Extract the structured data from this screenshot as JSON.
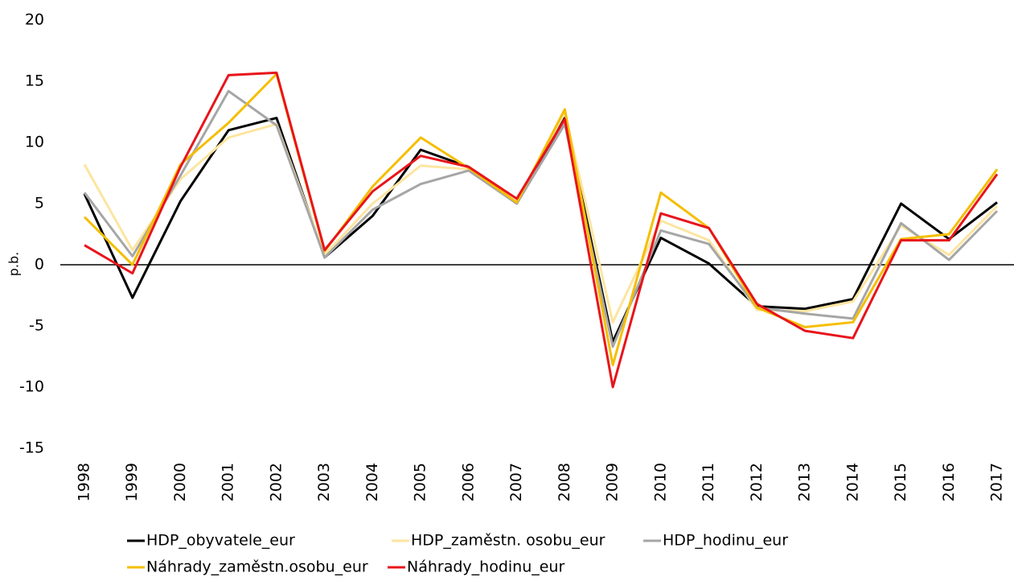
{
  "chart_data": {
    "type": "line",
    "ylabel": "p.b.",
    "categories": [
      "1998",
      "1999",
      "2000",
      "2001",
      "2002",
      "2003",
      "2004",
      "2005",
      "2006",
      "2007",
      "2008",
      "2009",
      "2010",
      "2011",
      "2012",
      "2013",
      "2014",
      "2015",
      "2016",
      "2017"
    ],
    "series": [
      {
        "name": "HDP_obyvatele_eur",
        "color": "#000000",
        "values": [
          5.8,
          -2.7,
          5.2,
          11,
          12,
          0.6,
          4,
          9.4,
          8,
          5,
          12,
          -6.3,
          2.2,
          0.1,
          -3.4,
          -3.6,
          -2.8,
          5,
          2.1,
          5.1
        ]
      },
      {
        "name": "HDP_zaměstn. osobu_eur",
        "color": "#fde5a0",
        "values": [
          8.2,
          1.2,
          7,
          10.4,
          11.5,
          0.8,
          5,
          8.1,
          7.8,
          5,
          12.5,
          -4.7,
          3.6,
          2,
          -3.7,
          -3.8,
          -3,
          3.2,
          0.8,
          4.8
        ]
      },
      {
        "name": "HDP_hodinu_eur",
        "color": "#a6a6a6",
        "values": [
          5.9,
          0.7,
          7.3,
          14.2,
          11.4,
          0.6,
          4.5,
          6.6,
          7.7,
          5,
          11.5,
          -6.7,
          2.8,
          1.7,
          -3.5,
          -4,
          -4.4,
          3.4,
          0.4,
          4.4
        ]
      },
      {
        "name": "Náhrady_zaměstn.osobu_eur",
        "color": "#f5be00",
        "values": [
          3.9,
          0,
          8.2,
          11.6,
          15.6,
          1.1,
          6.4,
          10.4,
          7.9,
          5.1,
          12.7,
          -8.2,
          5.9,
          3,
          -3.5,
          -5.1,
          -4.7,
          2.1,
          2.5,
          7.8
        ]
      },
      {
        "name": "Náhrady_hodinu_eur",
        "color": "#e8141b",
        "values": [
          1.6,
          -0.7,
          8,
          15.5,
          15.7,
          1.2,
          6,
          8.9,
          8,
          5.4,
          11.9,
          -10,
          4.2,
          3,
          -3.2,
          -5.4,
          -6,
          2,
          2,
          7.4
        ]
      }
    ],
    "ylim": [
      -15,
      20
    ],
    "yticks": [
      -15,
      -10,
      -5,
      0,
      5,
      10,
      15,
      20
    ],
    "grid": false,
    "legend": "bottom"
  }
}
